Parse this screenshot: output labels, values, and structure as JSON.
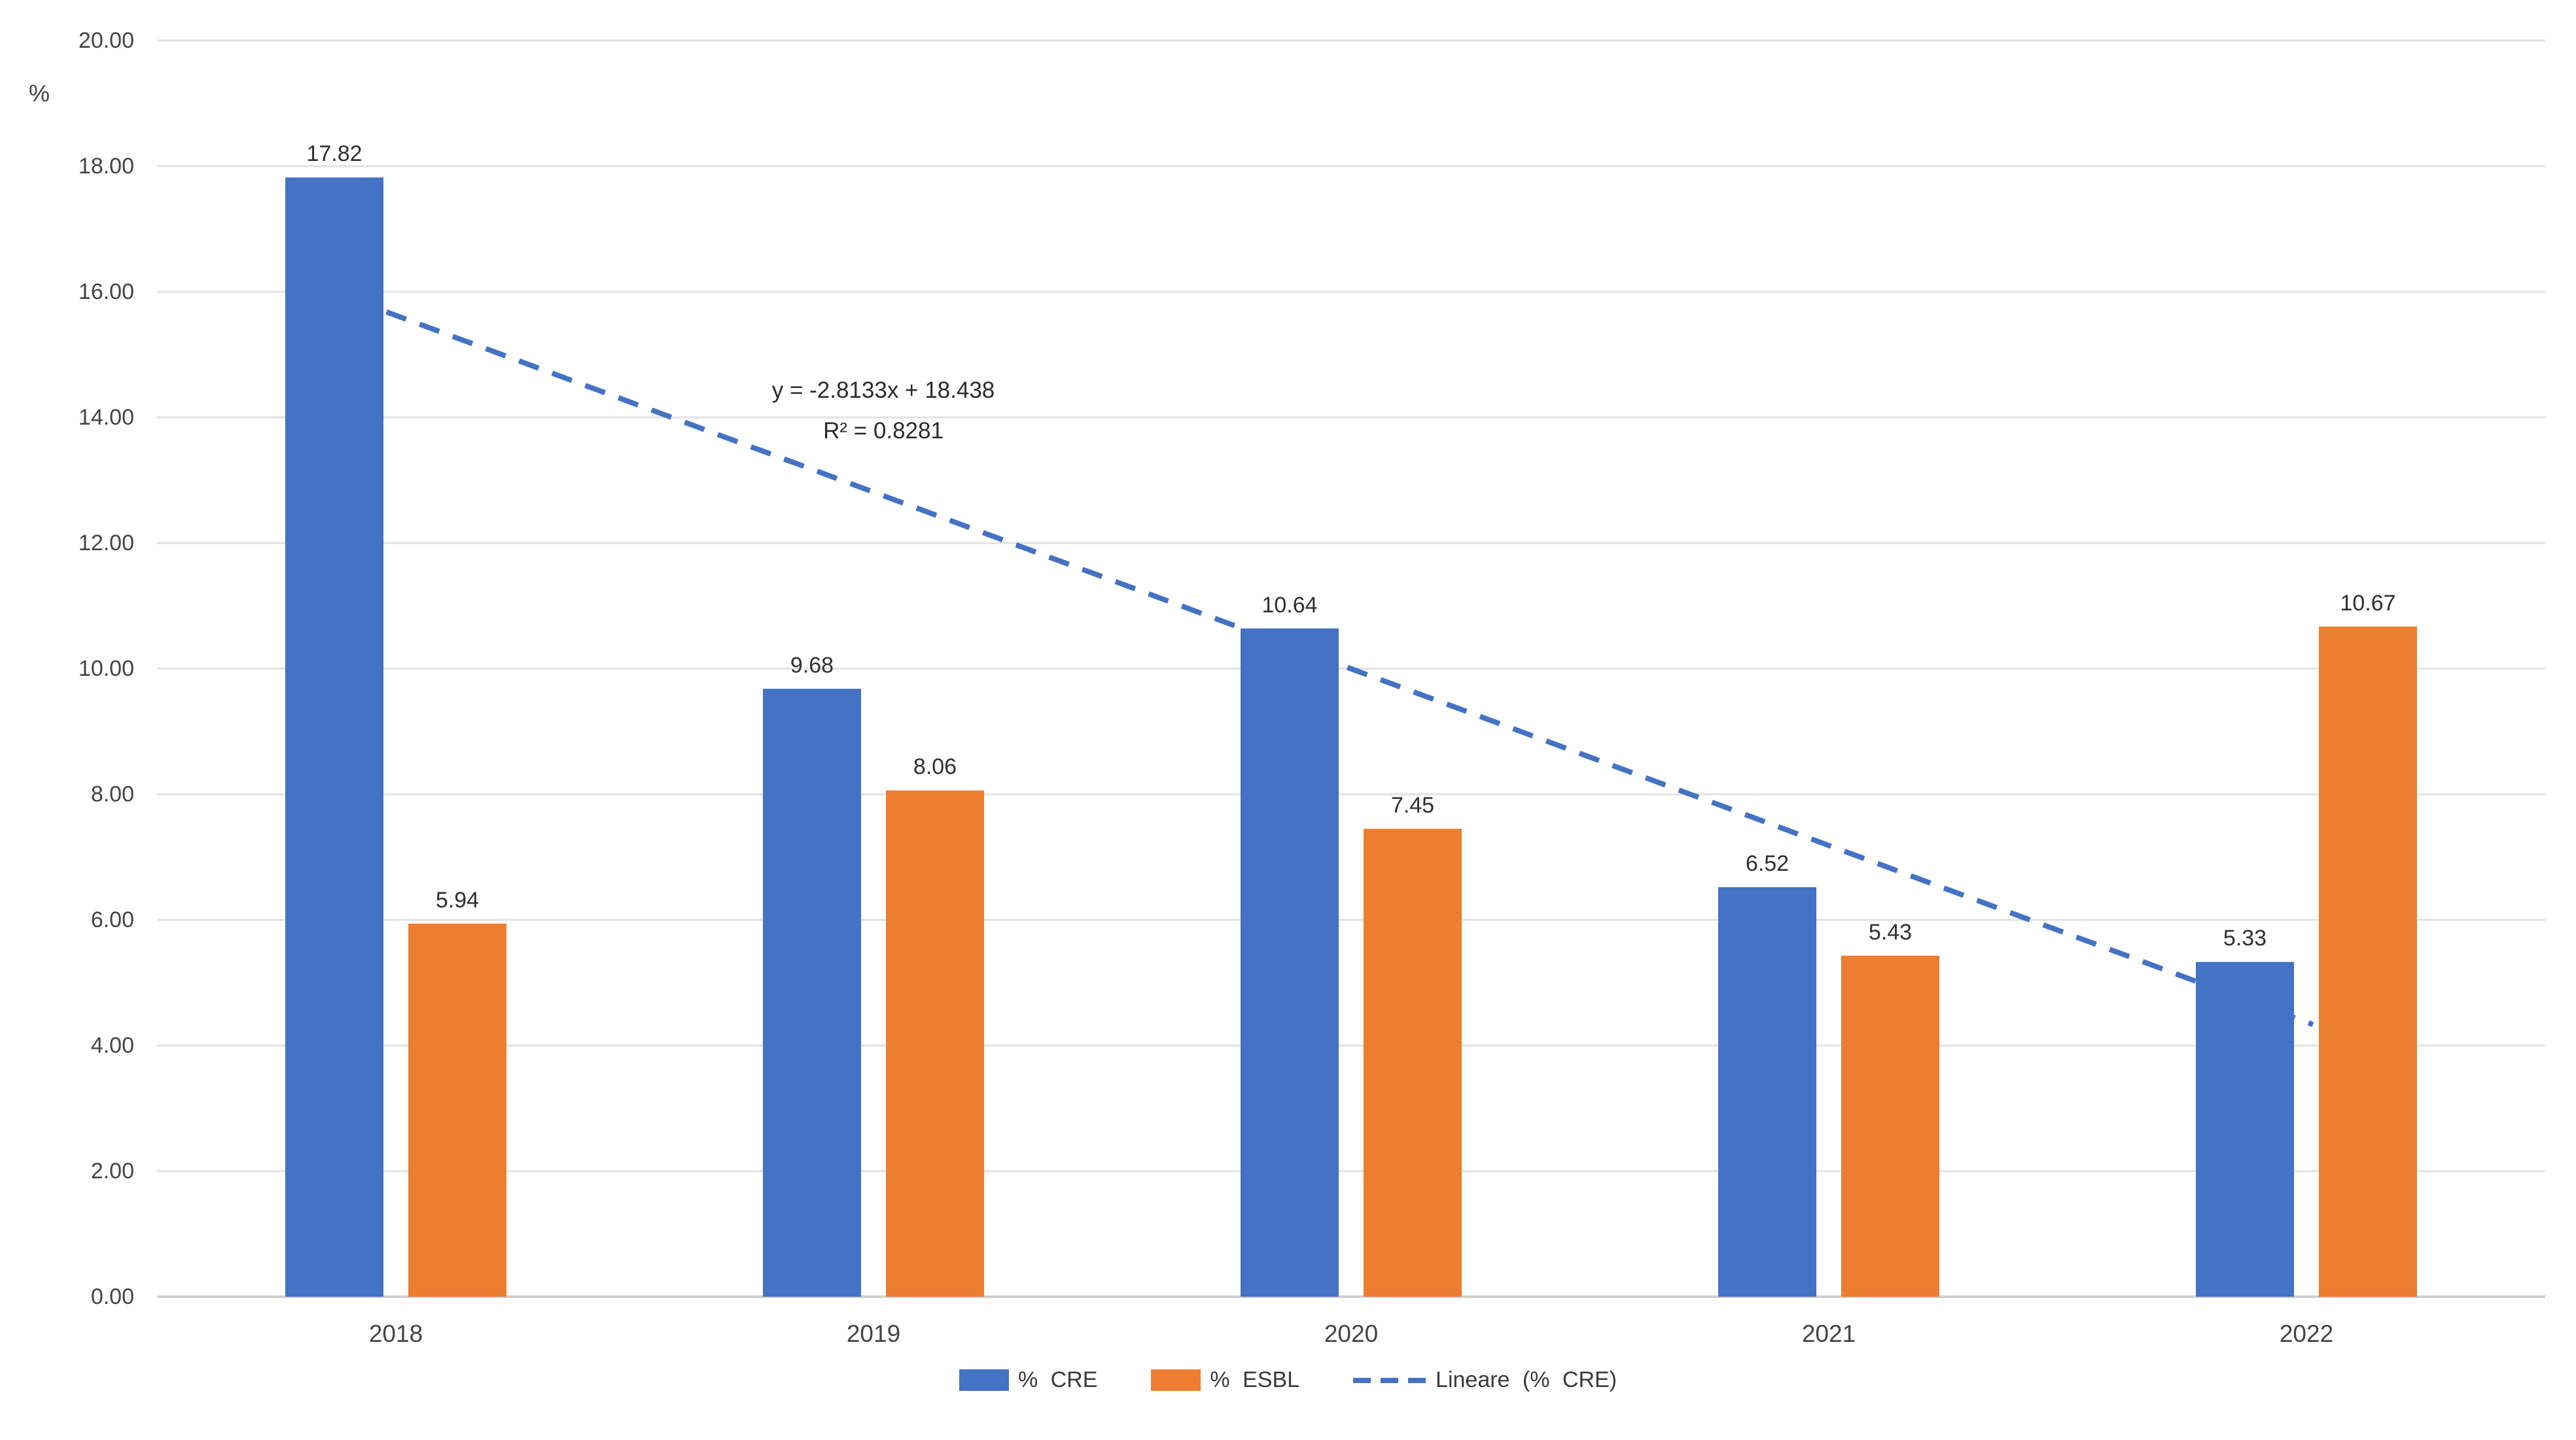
{
  "chart_data": {
    "type": "bar",
    "title": "",
    "categories": [
      "2018",
      "2019",
      "2020",
      "2021",
      "2022"
    ],
    "series": [
      {
        "name": "% CRE",
        "color": "#4472C4",
        "values": [
          17.82,
          9.68,
          10.64,
          6.52,
          5.33
        ]
      },
      {
        "name": "% ESBL",
        "color": "#ED7D31",
        "values": [
          5.94,
          8.06,
          7.45,
          5.43,
          10.67
        ]
      }
    ],
    "trendline": {
      "name": "Lineare (% CRE)",
      "color": "#4472C4",
      "style": "dashed",
      "equation": "y = -2.8133x + 18.438",
      "r_squared": "R² = 0.8281",
      "slope": -2.8133,
      "intercept": 18.438
    },
    "value_labels_decimals": 2,
    "xlabel": "",
    "ylabel": "%",
    "ylim": [
      0,
      20
    ],
    "ytick_step": 2,
    "ytick_labels": [
      "0.00",
      "2.00",
      "4.00",
      "6.00",
      "8.00",
      "10.00",
      "12.00",
      "14.00",
      "16.00",
      "18.00",
      "20.00"
    ],
    "grid": true,
    "gridline_color": "#e2e2e2",
    "axis_line_color": "#cfcfcf",
    "legend_position": "bottom"
  }
}
